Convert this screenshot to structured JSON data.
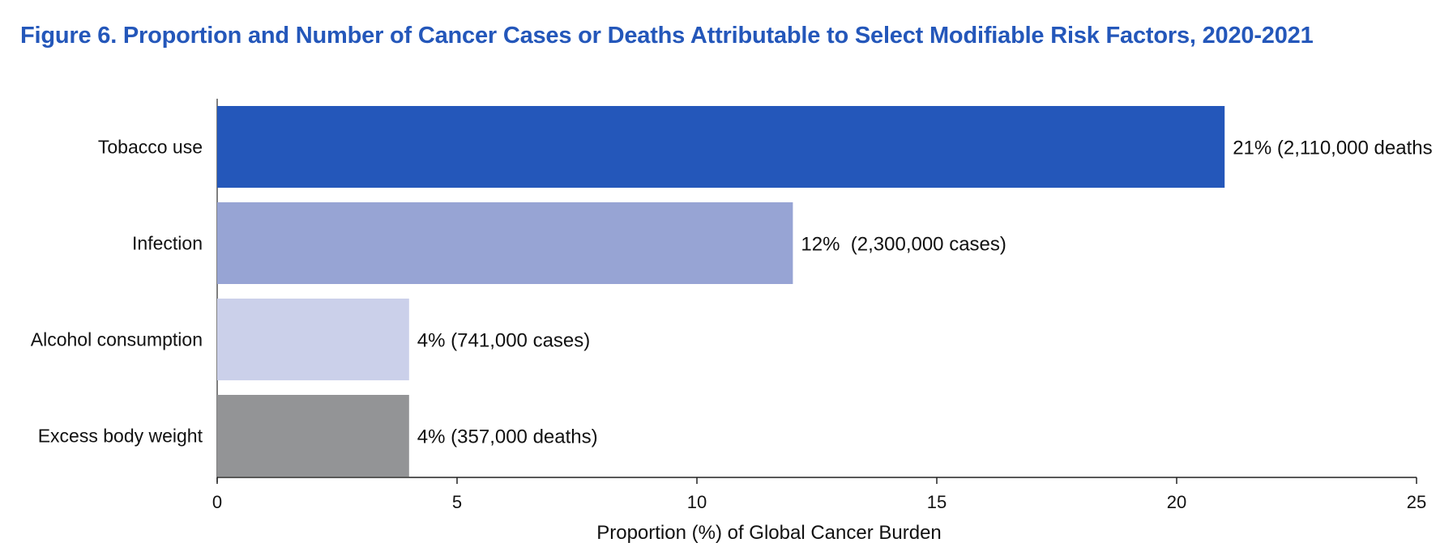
{
  "figure": {
    "title": "Figure 6. Proportion and Number of Cancer Cases or Deaths Attributable to Select Modifiable Risk Factors, 2020-2021"
  },
  "chart_data": {
    "type": "bar",
    "orientation": "horizontal",
    "title": "Figure 6. Proportion and Number of Cancer Cases or Deaths Attributable to Select Modifiable Risk Factors, 2020-2021",
    "xlabel": "Proportion (%) of Global Cancer Burden",
    "ylabel": "",
    "xlim": [
      0,
      25
    ],
    "xticks": [
      0,
      5,
      10,
      15,
      20,
      25
    ],
    "grid": false,
    "categories": [
      "Tobacco use",
      "Infection",
      "Alcohol consumption",
      "Excess body weight"
    ],
    "values": [
      21,
      12,
      4,
      4
    ],
    "data_labels": [
      "21% (2,110,000 deaths",
      "12%  (2,300,000 cases)",
      "4% (741,000 cases)",
      "4% (357,000 deaths)"
    ],
    "colors": [
      "#2457ba",
      "#97a4d4",
      "#cbd0ea",
      "#939496"
    ],
    "title_color": "#2457ba",
    "axis_color": "#555555"
  }
}
